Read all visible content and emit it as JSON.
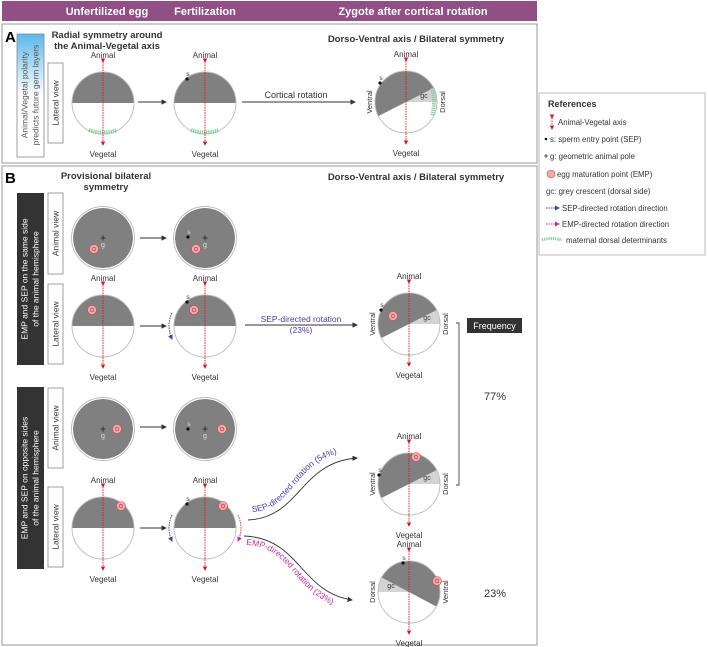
{
  "header": {
    "columns": [
      "Unfertilized egg",
      "Fertilization",
      "Zygote after cortical rotation"
    ]
  },
  "labels": {
    "animal": "Animal",
    "vegetal": "Vegetal",
    "ventral": "Ventral",
    "dorsal": "Dorsal",
    "s": "s",
    "g": "g",
    "gc": "gc",
    "lateral_view": "Lateral view",
    "animal_view": "Animal view"
  },
  "panel_a": {
    "letter": "A",
    "side_note": [
      "Animal/Vegetal polarity",
      "predicts future germ layers"
    ],
    "title_left": [
      "Radial symmetry around",
      "the Animal-Vegetal axis"
    ],
    "title_right": "Dorso-Ventral axis / Bilateral symmetry",
    "cortical_rotation": "Cortical rotation"
  },
  "panel_b": {
    "letter": "B",
    "title_left": [
      "Provisional bilateral",
      "symmetry"
    ],
    "title_right": "Dorso-Ventral axis / Bilateral symmetry",
    "case_same": [
      "EMP and SEP on the same side",
      "of the animal hemisphere"
    ],
    "case_opposite": [
      "EMP and SEP on opposite sides",
      "of the animal hemisphere"
    ],
    "sep_rotation_same": [
      "SEP-directed rotation",
      "(23%)"
    ],
    "sep_rotation_opposite": "SEP-directed rotation (54%)",
    "emp_rotation_opposite": "EMP-directed rotation (23%)",
    "frequency_label": "Frequency",
    "frequency_sep": "77%",
    "frequency_emp": "23%"
  },
  "legend": {
    "title": "References",
    "items": [
      {
        "icon": "animal-vegetal-axis-icon",
        "label": "Animal-Vegetal axis"
      },
      {
        "icon": "sperm-entry-point-icon",
        "label": "s: sperm entry point (SEP)"
      },
      {
        "icon": "geometric-pole-icon",
        "label": "g: geometric animal pole"
      },
      {
        "icon": "egg-maturation-point-icon",
        "label": "egg maturation point (EMP)"
      },
      {
        "icon": "none",
        "label": "gc: grey crescent (dorsal side)"
      },
      {
        "icon": "sep-rotation-arrow-icon",
        "label": "SEP-directed rotation direction"
      },
      {
        "icon": "emp-rotation-arrow-icon",
        "label": "EMP-directed rotation direction"
      },
      {
        "icon": "maternal-determinants-icon",
        "label": "maternal dorsal determinants"
      }
    ]
  },
  "colors": {
    "header": "#914f86",
    "side_note_blue": "#5bb8ea",
    "case_box": "#333333",
    "egg_dark": "#808080",
    "grey_crescent": "#d3d3d3",
    "axis_red": "#e0101a",
    "sep_blue": "#4a3ea8",
    "emp_magenta": "#d42a9c",
    "determinants_green": "#7fcf98",
    "emp_fill": "#f0aab2"
  }
}
